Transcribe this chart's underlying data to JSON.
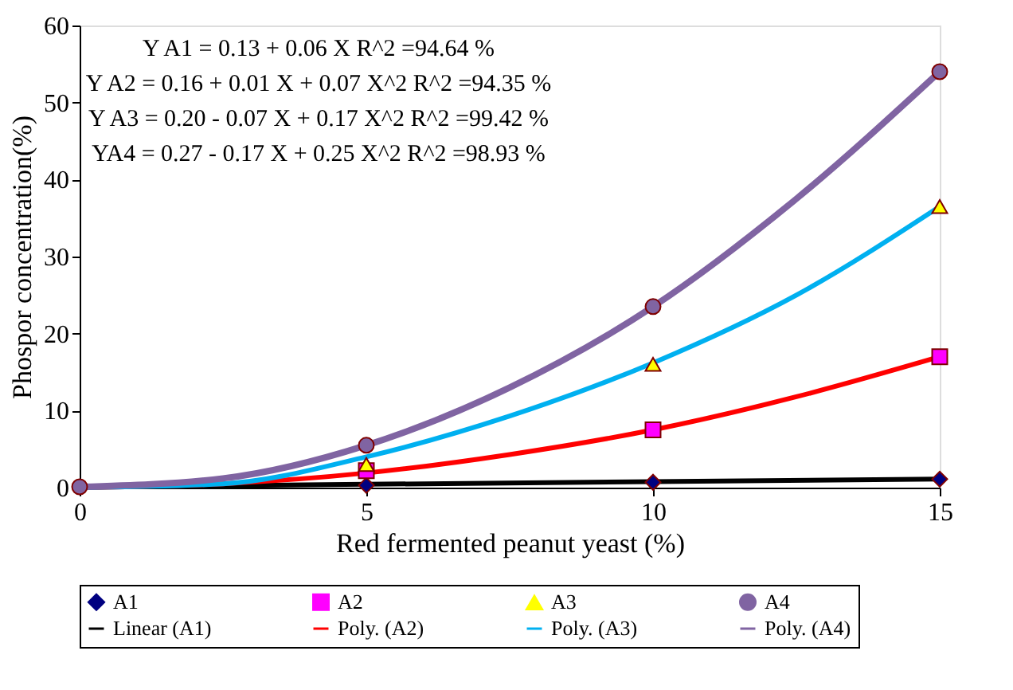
{
  "chart_data": {
    "type": "scatter",
    "xlabel": "Red fermented peanut yeast (%)",
    "ylabel": "Phospor concentration(%)",
    "x": [
      0,
      5,
      10,
      15
    ],
    "series": [
      {
        "name": "A1",
        "marker": "diamond",
        "color": "#000080",
        "values": [
          null,
          0.3,
          0.7,
          1.1
        ]
      },
      {
        "name": "A2",
        "marker": "square",
        "color": "#ff00ff",
        "values": [
          null,
          2.2,
          7.5,
          17
        ]
      },
      {
        "name": "A3",
        "marker": "triangle",
        "color": "#ffff00",
        "values": [
          null,
          3,
          16,
          36.5
        ]
      },
      {
        "name": "A4",
        "marker": "circle",
        "color": "#8064a2",
        "values": [
          0.1,
          5.5,
          23.5,
          54
        ]
      },
      {
        "name": "Linear (A1)",
        "type": "line",
        "color": "#000000",
        "x": [
          0,
          15
        ],
        "values": [
          0.1,
          1.1
        ]
      },
      {
        "name": "Poly. (A2)",
        "type": "line",
        "color": "#ff0000",
        "x": [
          0,
          2.5,
          5,
          7.5,
          10,
          12.5,
          15
        ],
        "values": [
          0,
          0.5,
          1.9,
          4.3,
          7.5,
          11.8,
          17
        ]
      },
      {
        "name": "Poly. (A3)",
        "type": "line",
        "color": "#00b0f0",
        "x": [
          0,
          2.5,
          5,
          7.5,
          10,
          12.5,
          15
        ],
        "values": [
          0,
          0.5,
          4,
          9.3,
          16.2,
          25,
          36.5
        ]
      },
      {
        "name": "Poly. (A4)",
        "type": "line",
        "color": "#8064a2",
        "x": [
          0,
          2.5,
          5,
          7.5,
          10,
          12.5,
          15
        ],
        "values": [
          0.1,
          1.2,
          5.5,
          13,
          23.5,
          37.5,
          54
        ]
      }
    ],
    "xlim": [
      0,
      15
    ],
    "xticks": [
      0,
      5,
      10,
      15
    ],
    "ylim": [
      0,
      60
    ],
    "yticks": [
      0,
      10,
      20,
      30,
      40,
      50,
      60
    ],
    "annotations": [
      "Y A1 = 0.13 + 0.06 X      R^2 =94.64 %",
      "Y A2 = 0.16 + 0.01 X  + 0.07 X^2       R^2 =94.35 %",
      "Y A3 = 0.20 - 0.07 X  + 0.17 X^2       R^2 =99.42 %",
      "YA4 = 0.27 - 0.17 X  + 0.25 X^2       R^2 =98.93 %"
    ],
    "grid": false,
    "legend": "bottom"
  }
}
